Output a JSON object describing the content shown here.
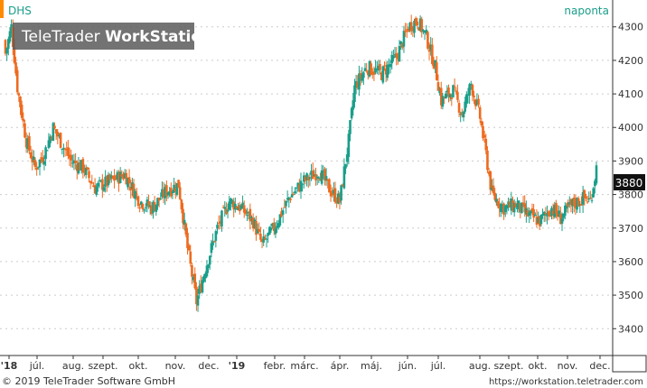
{
  "symbol": "DHS",
  "period_label": "naponta",
  "watermark": {
    "text_light": "TeleTrader ",
    "text_bold": "WorkStation"
  },
  "last_price": "3880",
  "footer": {
    "copyright": "© 2019 TeleTrader Software GmbH",
    "url": "https://workstation.teletrader.com"
  },
  "colors": {
    "up": "#1a9e8a",
    "down": "#ee6a1f",
    "accent": "#ff8c00",
    "grid": "#cccccc",
    "text": "#333333"
  },
  "chart_data": {
    "type": "candlestick",
    "ylim": [
      3320,
      4380
    ],
    "y_ticks": [
      3400,
      3500,
      3600,
      3700,
      3800,
      3900,
      4000,
      4100,
      4200,
      4300
    ],
    "x_ticks": [
      "'18",
      "júl.",
      "aug.",
      "szept.",
      "okt.",
      "nov.",
      "dec.",
      "'19",
      "febr.",
      "márc.",
      "ápr.",
      "máj.",
      "jún.",
      "júl.",
      "aug.",
      "szept.",
      "okt.",
      "nov.",
      "dec."
    ],
    "close_anchors": [
      [
        0,
        4220
      ],
      [
        4,
        4300
      ],
      [
        8,
        4120
      ],
      [
        14,
        3960
      ],
      [
        20,
        3880
      ],
      [
        26,
        3920
      ],
      [
        32,
        4000
      ],
      [
        38,
        3950
      ],
      [
        44,
        3900
      ],
      [
        52,
        3880
      ],
      [
        60,
        3820
      ],
      [
        70,
        3840
      ],
      [
        80,
        3860
      ],
      [
        90,
        3780
      ],
      [
        98,
        3760
      ],
      [
        108,
        3810
      ],
      [
        116,
        3830
      ],
      [
        122,
        3640
      ],
      [
        128,
        3480
      ],
      [
        134,
        3580
      ],
      [
        142,
        3700
      ],
      [
        150,
        3780
      ],
      [
        158,
        3760
      ],
      [
        166,
        3720
      ],
      [
        172,
        3650
      ],
      [
        180,
        3700
      ],
      [
        190,
        3790
      ],
      [
        200,
        3840
      ],
      [
        210,
        3870
      ],
      [
        218,
        3810
      ],
      [
        224,
        3780
      ],
      [
        230,
        3960
      ],
      [
        234,
        4120
      ],
      [
        242,
        4180
      ],
      [
        252,
        4160
      ],
      [
        262,
        4210
      ],
      [
        270,
        4300
      ],
      [
        276,
        4320
      ],
      [
        282,
        4270
      ],
      [
        288,
        4180
      ],
      [
        292,
        4080
      ],
      [
        300,
        4110
      ],
      [
        306,
        4040
      ],
      [
        312,
        4130
      ],
      [
        318,
        4030
      ],
      [
        322,
        3920
      ],
      [
        326,
        3800
      ],
      [
        334,
        3760
      ],
      [
        342,
        3770
      ],
      [
        350,
        3740
      ],
      [
        358,
        3720
      ],
      [
        366,
        3760
      ],
      [
        372,
        3730
      ],
      [
        380,
        3770
      ],
      [
        388,
        3790
      ],
      [
        392,
        3780
      ],
      [
        396,
        3880
      ]
    ]
  }
}
